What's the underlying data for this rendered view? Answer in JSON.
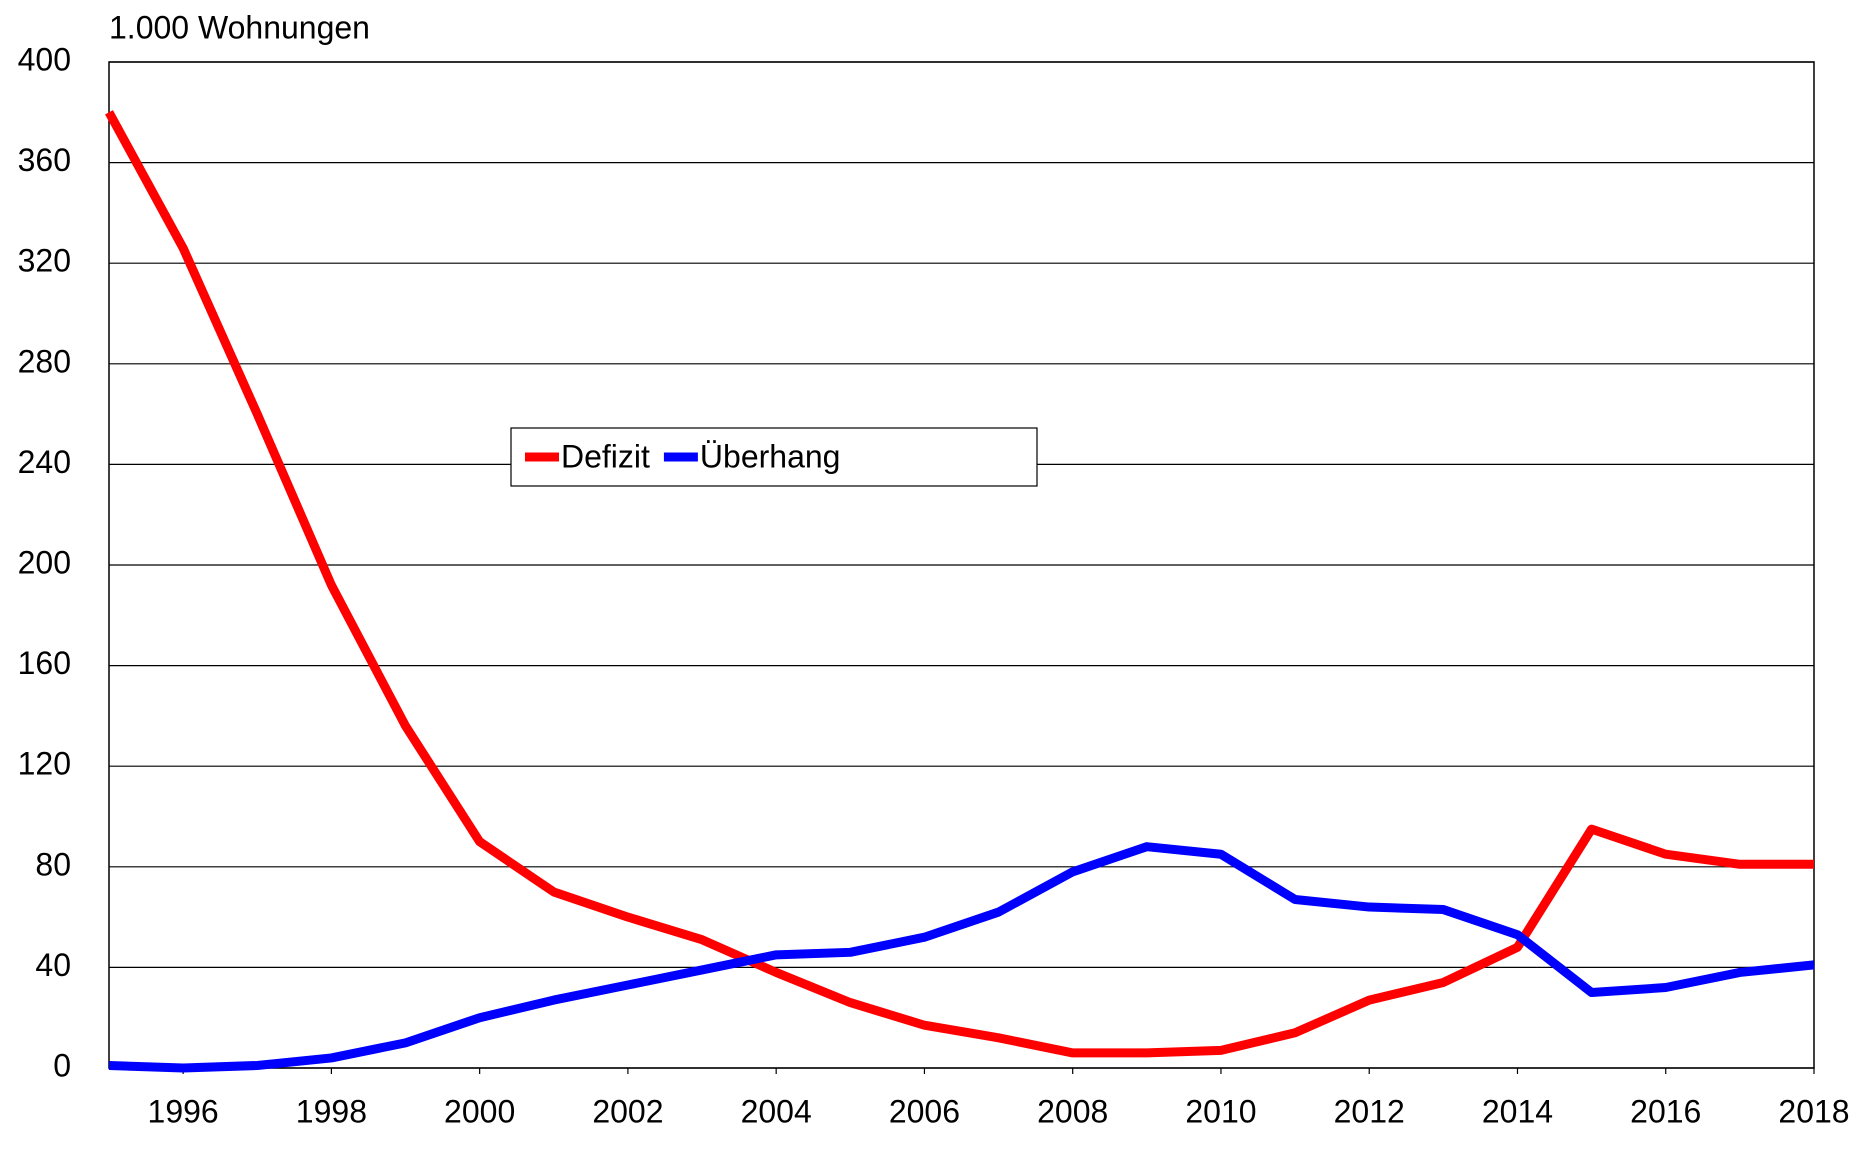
{
  "chart_data": {
    "type": "line",
    "title": "1.000 Wohnungen",
    "x": [
      1995,
      1996,
      1997,
      1998,
      1999,
      2000,
      2001,
      2002,
      2003,
      2004,
      2005,
      2006,
      2007,
      2008,
      2009,
      2010,
      2011,
      2012,
      2013,
      2014,
      2015,
      2016,
      2017,
      2018
    ],
    "series": [
      {
        "name": "Defizit",
        "color": "#ff0000",
        "values": [
          380,
          326,
          260,
          192,
          136,
          90,
          70,
          60,
          51,
          38,
          26,
          17,
          12,
          6,
          6,
          7,
          14,
          27,
          34,
          48,
          95,
          85,
          81,
          81
        ]
      },
      {
        "name": "Überhang",
        "color": "#0000ff",
        "values": [
          1,
          0,
          1,
          4,
          10,
          20,
          27,
          33,
          39,
          45,
          46,
          52,
          62,
          78,
          88,
          85,
          67,
          64,
          63,
          53,
          30,
          32,
          38,
          41
        ]
      }
    ],
    "xlim": [
      1995,
      2018
    ],
    "xticks": [
      1996,
      1998,
      2000,
      2002,
      2004,
      2006,
      2008,
      2010,
      2012,
      2014,
      2016,
      2018
    ],
    "ylim": [
      0,
      400
    ],
    "yticks": [
      0,
      40,
      80,
      120,
      160,
      200,
      240,
      280,
      320,
      360,
      400
    ],
    "grid": true,
    "legend": "center"
  }
}
